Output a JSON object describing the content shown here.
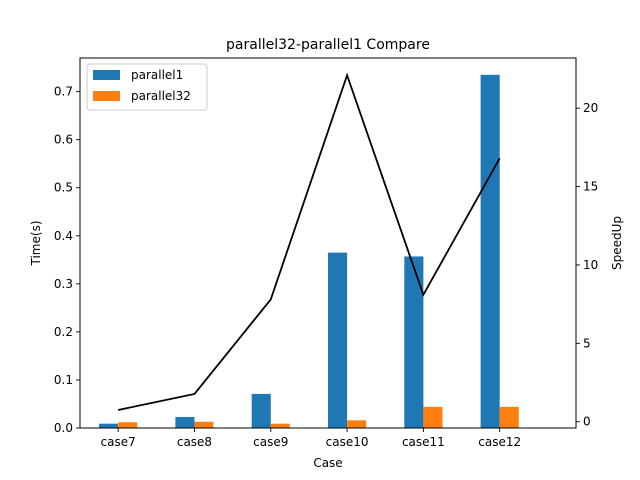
{
  "chart_data": {
    "type": "bar",
    "title": "parallel32-parallel1 Compare",
    "xlabel": "Case",
    "ylabel": "Time(s)",
    "y2label": "SpeedUp",
    "categories": [
      "case7",
      "case8",
      "case9",
      "case10",
      "case11",
      "case12"
    ],
    "series": [
      {
        "name": "parallel1",
        "values": [
          0.009,
          0.023,
          0.071,
          0.365,
          0.357,
          0.735
        ],
        "color": "#1f77b4"
      },
      {
        "name": "parallel32",
        "values": [
          0.012,
          0.013,
          0.009,
          0.016,
          0.044,
          0.044
        ],
        "color": "#ff7f0e"
      }
    ],
    "line_series": {
      "name": "SpeedUp",
      "axis": "right",
      "values": [
        0.75,
        1.77,
        7.8,
        22.1,
        8.1,
        16.8
      ],
      "color": "#000000"
    },
    "ylim": [
      0,
      0.77
    ],
    "y2lim": [
      -0.4,
      23.2
    ],
    "yticks": [
      0.0,
      0.1,
      0.2,
      0.3,
      0.4,
      0.5,
      0.6,
      0.7
    ],
    "yticklabels": [
      "0.0",
      "0.1",
      "0.2",
      "0.3",
      "0.4",
      "0.5",
      "0.6",
      "0.7"
    ],
    "y2ticks": [
      0,
      5,
      10,
      15,
      20
    ],
    "y2ticklabels": [
      "0",
      "5",
      "10",
      "15",
      "20"
    ],
    "legend": {
      "position": "top-left",
      "entries": [
        "parallel1",
        "parallel32"
      ]
    },
    "grid": false
  }
}
